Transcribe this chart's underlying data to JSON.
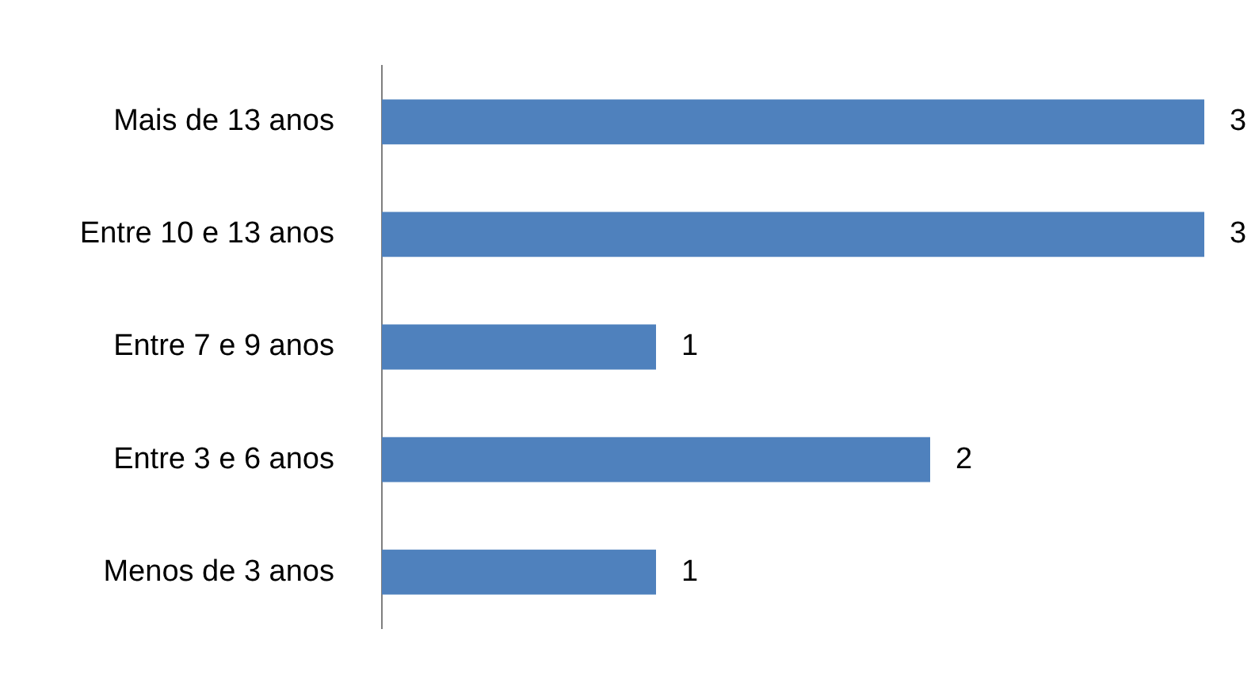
{
  "chart_data": {
    "type": "bar",
    "orientation": "horizontal",
    "categories": [
      "Mais de 13 anos",
      "Entre 10 e 13 anos",
      "Entre 7 e 9 anos",
      "Entre 3 e 6 anos",
      "Menos de 3 anos"
    ],
    "values": [
      3,
      3,
      1,
      2,
      1
    ],
    "color": "#4f81bd",
    "data_labels": true
  }
}
